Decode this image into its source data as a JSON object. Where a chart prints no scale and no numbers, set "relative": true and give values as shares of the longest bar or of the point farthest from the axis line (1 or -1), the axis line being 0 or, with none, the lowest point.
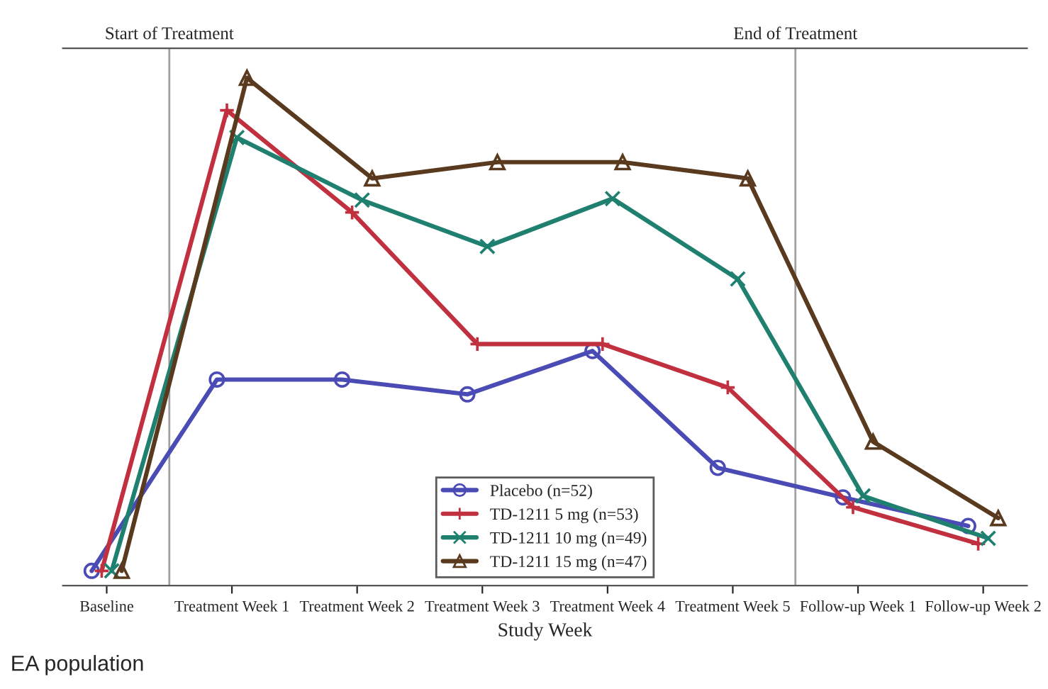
{
  "chart_data": {
    "type": "line",
    "relative": true,
    "xlabel": "Study Week",
    "categories": [
      "Baseline",
      "Treatment Week 1",
      "Treatment Week 2",
      "Treatment Week 3",
      "Treatment Week 4",
      "Treatment Week 5",
      "Follow-up Week 1",
      "Follow-up Week 2"
    ],
    "series": [
      {
        "name": "Placebo (n=52)",
        "color": "#4b4bb5",
        "marker": "circle",
        "values": [
          0,
          0.388,
          0.388,
          0.358,
          0.446,
          0.209,
          0.149,
          0.091
        ]
      },
      {
        "name": "TD-1211 5 mg (n=53)",
        "color": "#c0303f",
        "marker": "plus",
        "values": [
          0,
          0.934,
          0.727,
          0.46,
          0.46,
          0.372,
          0.129,
          0.055
        ]
      },
      {
        "name": "TD-1211 10 mg (n=49)",
        "color": "#1f8070",
        "marker": "cross",
        "values": [
          0,
          0.879,
          0.752,
          0.658,
          0.755,
          0.592,
          0.152,
          0.066
        ]
      },
      {
        "name": "TD-1211 15 mg (n=47)",
        "color": "#5a3a1e",
        "marker": "triangle",
        "values": [
          0,
          1,
          0.796,
          0.829,
          0.829,
          0.796,
          0.262,
          0.107
        ]
      }
    ],
    "legend": "bottom",
    "grid": false,
    "tick_labels": "x",
    "annotations": [
      "Start of Treatment",
      "End of Treatment",
      "EA population"
    ]
  }
}
